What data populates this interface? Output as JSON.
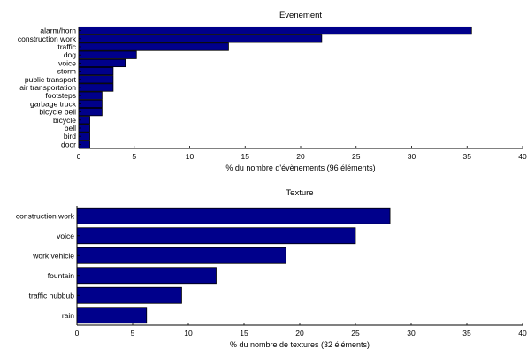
{
  "chart_data": [
    {
      "type": "bar",
      "orientation": "horizontal",
      "title": "Evenement",
      "xlabel": "% du nombre d'évènements (96 éléments)",
      "ylabel": "",
      "xlim": [
        0,
        40
      ],
      "xticks": [
        "0",
        "5",
        "10",
        "15",
        "20",
        "25",
        "30",
        "35",
        "40"
      ],
      "grid": false,
      "bar_color": "#00008B",
      "categories": [
        "alarm/horn",
        "construction work",
        "traffic",
        "dog",
        "voice",
        "storm",
        "public transport",
        "air transportation",
        "footsteps",
        "garbage truck",
        "bicycle bell",
        "bicycle",
        "bell",
        "bird",
        "door"
      ],
      "values": [
        35.4,
        21.9,
        13.5,
        5.2,
        4.2,
        3.1,
        3.1,
        3.1,
        2.1,
        2.1,
        2.1,
        1.0,
        1.0,
        1.0,
        1.0
      ]
    },
    {
      "type": "bar",
      "orientation": "horizontal",
      "title": "Texture",
      "xlabel": "% du nombre de textures (32 éléments)",
      "ylabel": "",
      "xlim": [
        0,
        40
      ],
      "xticks": [
        "0",
        "5",
        "10",
        "15",
        "20",
        "25",
        "30",
        "35",
        "40"
      ],
      "grid": false,
      "bar_color": "#00008B",
      "categories": [
        "construction work",
        "voice",
        "work vehicle",
        "fountain",
        "traffic hubbub",
        "rain"
      ],
      "values": [
        28.1,
        25.0,
        18.75,
        12.5,
        9.4,
        6.25
      ]
    }
  ]
}
